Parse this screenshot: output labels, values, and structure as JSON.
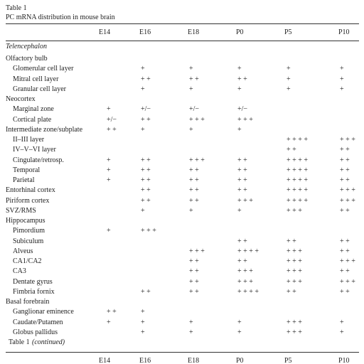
{
  "caption": {
    "label": "Table 1",
    "title": "PC mRNA distribution in mouse brain"
  },
  "header": [
    "E14",
    "E16",
    "E18",
    "P0",
    "P5",
    "P10"
  ],
  "section": "Telencephalon",
  "groups": [
    {
      "label": "Olfactory bulb",
      "rows": [
        {
          "label": "Glomerular cell layer",
          "cells": [
            null,
            "+",
            "+",
            "+",
            "+",
            "+"
          ]
        },
        {
          "label": "Mitral cell layer",
          "cells": [
            null,
            "+ +",
            "+ +",
            "+ +",
            "+",
            "+"
          ]
        },
        {
          "label": "Granular cell layer",
          "cells": [
            null,
            "+",
            "+",
            "+",
            "+",
            "+"
          ]
        }
      ]
    },
    {
      "label": "Neocortex",
      "rows": [
        {
          "label": "Marginal zone",
          "cells": [
            "+",
            "+/−",
            "+/−",
            "+/−",
            null,
            null
          ]
        },
        {
          "label": "Cortical plate",
          "cells": [
            "+/−",
            "+ +",
            "+ + +",
            "+ + +",
            null,
            null
          ]
        }
      ]
    },
    {
      "label": "Intermediate zone/subplate",
      "cells": [
        "+ +",
        "+",
        "+",
        "+",
        null,
        null
      ],
      "rows": [
        {
          "label": "II–III layer",
          "cells": [
            null,
            null,
            null,
            null,
            "+ + + +",
            "+ + +"
          ]
        },
        {
          "label": "IV–V–VI layer",
          "cells": [
            null,
            null,
            null,
            null,
            "+ +",
            "+ +"
          ]
        },
        {
          "label": "Cingulate/retrosp.",
          "cells": [
            "+",
            "+ +",
            "+ + +",
            "+ +",
            "+ + + +",
            "+ +"
          ]
        },
        {
          "label": "Temporal",
          "cells": [
            "+",
            "+ +",
            "+ +",
            "+ +",
            "+ + + +",
            "+ +"
          ]
        },
        {
          "label": "Parietal",
          "cells": [
            "+",
            "+ +",
            "+ +",
            "+ +",
            "+ + + +",
            "+ +"
          ]
        }
      ]
    },
    {
      "label": "Entorhinal cortex",
      "cells": [
        null,
        "+ +",
        "+ +",
        "+ +",
        "+ + + +",
        "+ + +"
      ]
    },
    {
      "label": "Piriform cortex",
      "cells": [
        null,
        "+ +",
        "+ +",
        "+ + +",
        "+ + + +",
        "+ + +"
      ]
    },
    {
      "label": "SVZ/RMS",
      "cells": [
        null,
        "+",
        "+",
        "+",
        "+ + +",
        "+ +"
      ]
    },
    {
      "label": "Hippocampus",
      "rows": [
        {
          "label": "Pimordium",
          "cells": [
            "+",
            "+ + +",
            null,
            null,
            null,
            null
          ]
        },
        {
          "label": "Subiculum",
          "cells": [
            null,
            null,
            null,
            "+ +",
            "+ +",
            "+ +"
          ]
        },
        {
          "label": "Alveus",
          "cells": [
            null,
            null,
            "+ + +",
            "+ + + +",
            "+ + +",
            "+ +"
          ]
        },
        {
          "label": "CA1/CA2",
          "cells": [
            null,
            null,
            "+ +",
            "+ +",
            "+ + +",
            "+ + +"
          ]
        },
        {
          "label": "CA3",
          "cells": [
            null,
            null,
            "+ +",
            "+ + +",
            "+ + +",
            "+ +"
          ]
        },
        {
          "label": "Dentate gyrus",
          "cells": [
            null,
            null,
            "+ +",
            "+ + +",
            "+ + +",
            "+ + +"
          ]
        },
        {
          "label": "Fimbria fornix",
          "cells": [
            null,
            "+ +",
            "+ +",
            "+ + + +",
            "+ +",
            "+ +"
          ]
        }
      ]
    },
    {
      "label": "Basal forebrain",
      "rows": [
        {
          "label": "Ganglionar eminence",
          "cells": [
            "+ +",
            "+",
            null,
            null,
            null,
            null
          ]
        },
        {
          "label": "Caudate/Putamen",
          "cells": [
            "+",
            "+",
            "+",
            "+",
            "+ + +",
            "+"
          ]
        },
        {
          "label": "Globus pallidus",
          "cells": [
            null,
            "+",
            "+",
            "+",
            "+ + +",
            "+"
          ]
        }
      ]
    }
  ],
  "continued": {
    "label": "Table 1",
    "note": "(continued)"
  },
  "header_repeat": [
    "E14",
    "E16",
    "E18",
    "P0",
    "P5",
    "P10"
  ]
}
